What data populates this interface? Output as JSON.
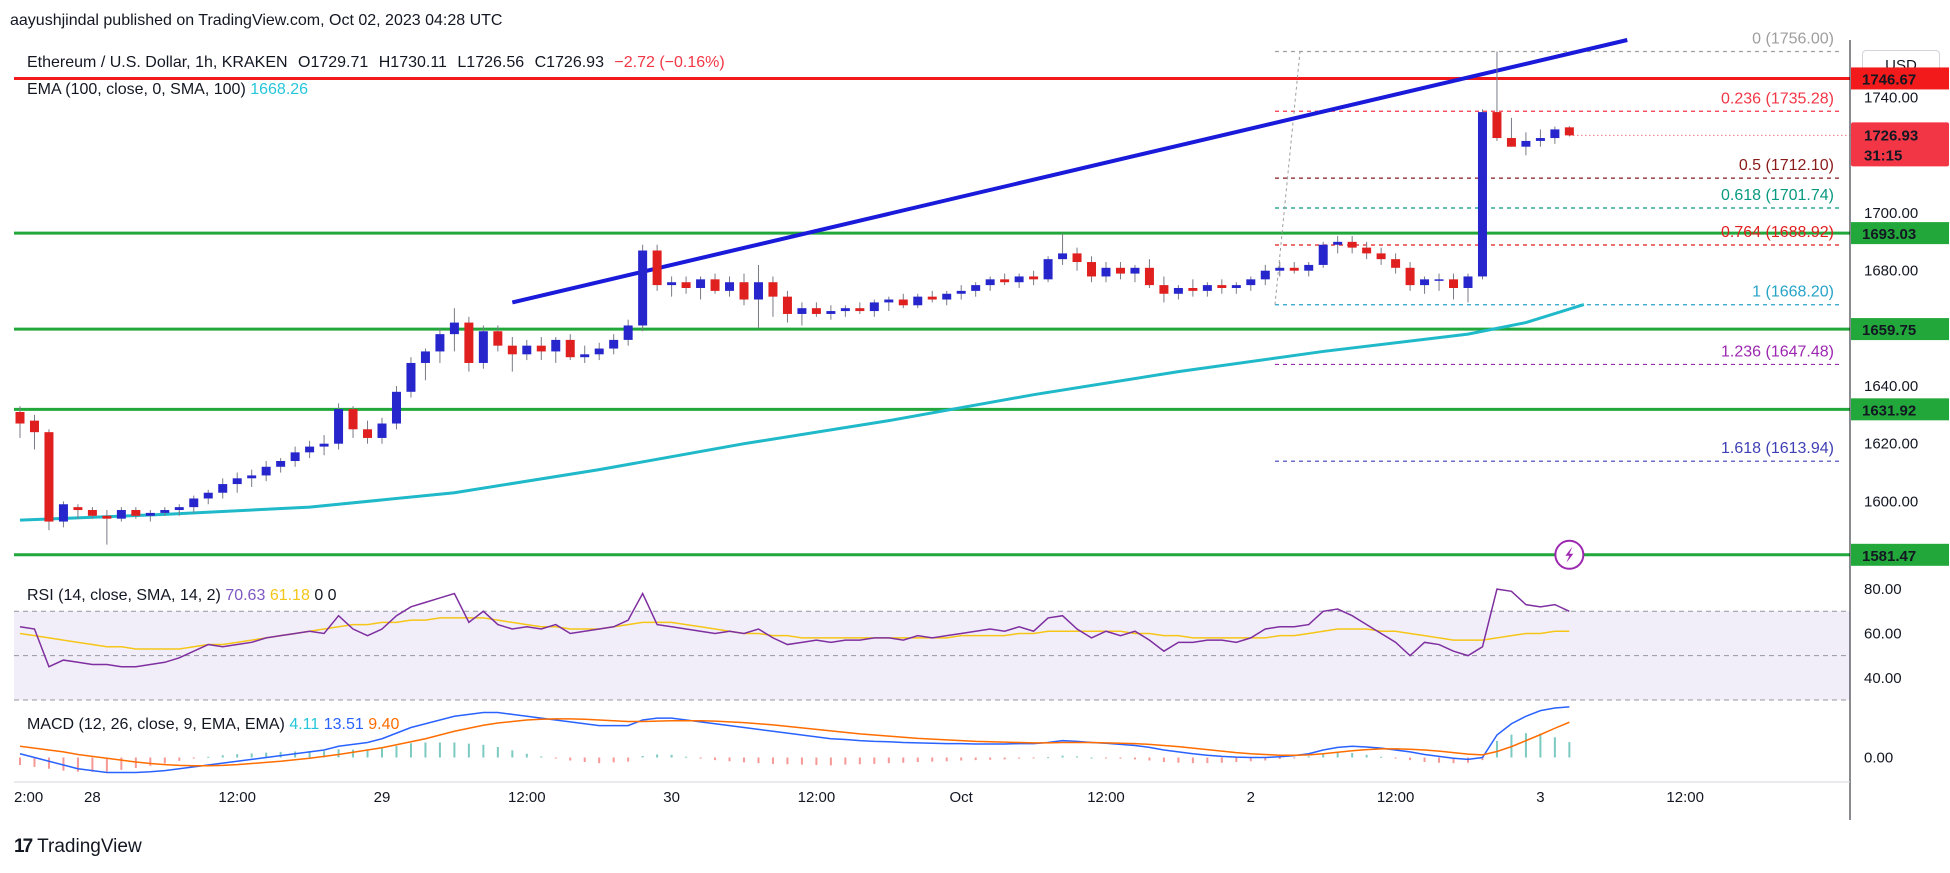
{
  "header": {
    "published": "aayushjindal published on TradingView.com, Oct 02, 2023 04:28 UTC"
  },
  "legend": {
    "symbol": "Ethereum / U.S. Dollar, 1h, KRAKEN",
    "open": "O1729.71",
    "high": "H1730.11",
    "low": "L1726.56",
    "close": "C1726.93",
    "change": "−2.72 (−0.16%)",
    "ema_label": "EMA (100, close, 0, SMA, 100)",
    "ema_value": "1668.26",
    "rsi_label": "RSI (14, close, SMA, 14, 2)",
    "rsi_value": "70.63",
    "rsi_ma_value": "61.18",
    "rsi_extra_1": "0",
    "rsi_extra_2": "0",
    "macd_label": "MACD (12, 26, close, 9, EMA, EMA)",
    "macd_hist_value": "4.11",
    "macd_value": "13.51",
    "macd_signal_value": "9.40"
  },
  "currency_badge": "USD",
  "footer": {
    "logo_mark": "17",
    "logo_text": "TradingView"
  },
  "colors": {
    "up": "#2626cc",
    "down": "#e01f1f",
    "trendline": "#1a1adb",
    "resistance": "#f21a1a",
    "support": "#22a83a",
    "ema": "#1fb9c9",
    "rsi": "#7e2fa0",
    "rsi_ma": "#f5c518",
    "macd": "#2962ff",
    "signal": "#ff6d00"
  },
  "chart_data": {
    "type": "candlestick",
    "title": "Ethereum / U.S. Dollar, 1h, KRAKEN",
    "ylim": [
      1571,
      1760
    ],
    "y_ticks": [
      "1740.00",
      "1700.00",
      "1680.00",
      "1640.00",
      "1620.00",
      "1600.00"
    ],
    "y_tick_values": [
      1740,
      1700,
      1680,
      1640,
      1620,
      1600
    ],
    "x_labels": [
      "2:00",
      "28",
      "12:00",
      "29",
      "12:00",
      "30",
      "12:00",
      "Oct",
      "12:00",
      "2",
      "12:00",
      "3",
      "12:00"
    ],
    "x_label_index": [
      -5,
      5,
      15,
      25,
      35,
      45,
      55,
      65,
      75,
      85,
      95,
      105,
      115
    ],
    "candles_ohlc": [
      [
        1631,
        1633,
        1622,
        1627
      ],
      [
        1628,
        1630,
        1618,
        1624
      ],
      [
        1624,
        1625,
        1590,
        1593
      ],
      [
        1593,
        1600,
        1591,
        1599
      ],
      [
        1598,
        1599,
        1594,
        1597
      ],
      [
        1597,
        1598,
        1594,
        1595
      ],
      [
        1595,
        1597,
        1585,
        1594
      ],
      [
        1594,
        1598,
        1593,
        1597
      ],
      [
        1597,
        1598,
        1594,
        1595
      ],
      [
        1595,
        1597,
        1593,
        1596
      ],
      [
        1596,
        1598,
        1595,
        1597
      ],
      [
        1597,
        1599,
        1595,
        1598
      ],
      [
        1598,
        1602,
        1596,
        1601
      ],
      [
        1601,
        1604,
        1599,
        1603
      ],
      [
        1603,
        1608,
        1601,
        1606
      ],
      [
        1606,
        1610,
        1603,
        1608
      ],
      [
        1608,
        1611,
        1605,
        1609
      ],
      [
        1609,
        1614,
        1607,
        1612
      ],
      [
        1612,
        1615,
        1610,
        1614
      ],
      [
        1614,
        1619,
        1612,
        1617
      ],
      [
        1617,
        1621,
        1615,
        1619
      ],
      [
        1619,
        1623,
        1616,
        1620
      ],
      [
        1620,
        1634,
        1618,
        1632
      ],
      [
        1632,
        1633,
        1622,
        1625
      ],
      [
        1625,
        1628,
        1620,
        1622
      ],
      [
        1622,
        1629,
        1620,
        1627
      ],
      [
        1627,
        1640,
        1625,
        1638
      ],
      [
        1638,
        1650,
        1636,
        1648
      ],
      [
        1648,
        1653,
        1642,
        1652
      ],
      [
        1652,
        1660,
        1648,
        1658
      ],
      [
        1658,
        1667,
        1652,
        1662
      ],
      [
        1662,
        1664,
        1645,
        1648
      ],
      [
        1648,
        1661,
        1646,
        1659
      ],
      [
        1659,
        1661,
        1652,
        1654
      ],
      [
        1654,
        1657,
        1645,
        1651
      ],
      [
        1651,
        1656,
        1649,
        1654
      ],
      [
        1654,
        1657,
        1649,
        1652
      ],
      [
        1652,
        1657,
        1648,
        1656
      ],
      [
        1656,
        1658,
        1649,
        1650
      ],
      [
        1650,
        1654,
        1648,
        1651
      ],
      [
        1651,
        1655,
        1649,
        1653
      ],
      [
        1653,
        1658,
        1651,
        1656
      ],
      [
        1656,
        1663,
        1654,
        1661
      ],
      [
        1661,
        1689,
        1659,
        1687
      ],
      [
        1687,
        1689,
        1673,
        1675
      ],
      [
        1675,
        1678,
        1671,
        1676
      ],
      [
        1676,
        1678,
        1672,
        1674
      ],
      [
        1674,
        1678,
        1670,
        1677
      ],
      [
        1677,
        1679,
        1672,
        1673
      ],
      [
        1673,
        1678,
        1671,
        1676
      ],
      [
        1676,
        1679,
        1668,
        1670
      ],
      [
        1670,
        1682,
        1660,
        1676
      ],
      [
        1676,
        1678,
        1664,
        1671
      ],
      [
        1671,
        1673,
        1662,
        1665
      ],
      [
        1665,
        1669,
        1661,
        1667
      ],
      [
        1667,
        1669,
        1664,
        1665
      ],
      [
        1665,
        1668,
        1663,
        1666
      ],
      [
        1666,
        1668,
        1664,
        1667
      ],
      [
        1667,
        1669,
        1665,
        1666
      ],
      [
        1666,
        1670,
        1664,
        1669
      ],
      [
        1669,
        1671,
        1666,
        1670
      ],
      [
        1670,
        1672,
        1667,
        1668
      ],
      [
        1668,
        1672,
        1667,
        1671
      ],
      [
        1671,
        1673,
        1669,
        1670
      ],
      [
        1670,
        1673,
        1668,
        1672
      ],
      [
        1672,
        1675,
        1670,
        1673
      ],
      [
        1673,
        1676,
        1671,
        1675
      ],
      [
        1675,
        1678,
        1673,
        1677
      ],
      [
        1677,
        1679,
        1675,
        1676
      ],
      [
        1676,
        1679,
        1674,
        1678
      ],
      [
        1678,
        1680,
        1675,
        1677
      ],
      [
        1677,
        1685,
        1676,
        1684
      ],
      [
        1684,
        1693,
        1682,
        1686
      ],
      [
        1686,
        1688,
        1680,
        1683
      ],
      [
        1683,
        1685,
        1676,
        1678
      ],
      [
        1678,
        1683,
        1676,
        1681
      ],
      [
        1681,
        1683,
        1677,
        1679
      ],
      [
        1679,
        1682,
        1676,
        1681
      ],
      [
        1681,
        1684,
        1674,
        1675
      ],
      [
        1675,
        1678,
        1669,
        1672
      ],
      [
        1672,
        1675,
        1670,
        1674
      ],
      [
        1674,
        1677,
        1671,
        1673
      ],
      [
        1673,
        1676,
        1671,
        1675
      ],
      [
        1675,
        1677,
        1672,
        1674
      ],
      [
        1674,
        1676,
        1672,
        1675
      ],
      [
        1675,
        1678,
        1673,
        1677
      ],
      [
        1677,
        1682,
        1675,
        1680
      ],
      [
        1680,
        1683,
        1678,
        1681
      ],
      [
        1681,
        1683,
        1679,
        1680
      ],
      [
        1680,
        1683,
        1678,
        1682
      ],
      [
        1682,
        1690,
        1681,
        1689
      ],
      [
        1689,
        1692,
        1686,
        1690
      ],
      [
        1690,
        1692,
        1686,
        1688
      ],
      [
        1688,
        1690,
        1684,
        1686
      ],
      [
        1686,
        1688,
        1682,
        1684
      ],
      [
        1684,
        1686,
        1679,
        1681
      ],
      [
        1681,
        1683,
        1673,
        1675
      ],
      [
        1675,
        1678,
        1672,
        1677
      ],
      [
        1677,
        1679,
        1673,
        1677
      ],
      [
        1677,
        1679,
        1670,
        1674
      ],
      [
        1674,
        1679,
        1669,
        1678
      ],
      [
        1678,
        1736,
        1677,
        1735
      ],
      [
        1735,
        1756,
        1725,
        1726
      ],
      [
        1726,
        1733,
        1723,
        1723
      ],
      [
        1723,
        1728,
        1720,
        1725
      ],
      [
        1725,
        1729,
        1723,
        1726
      ],
      [
        1726,
        1730,
        1724,
        1729
      ],
      [
        1729.71,
        1730.11,
        1726.56,
        1726.93
      ]
    ],
    "ema_100": [
      [
        0,
        1593.5
      ],
      [
        10,
        1595.5
      ],
      [
        20,
        1598
      ],
      [
        30,
        1603
      ],
      [
        40,
        1611
      ],
      [
        50,
        1620
      ],
      [
        60,
        1628
      ],
      [
        70,
        1637
      ],
      [
        80,
        1645
      ],
      [
        90,
        1652
      ],
      [
        100,
        1658
      ],
      [
        104,
        1662
      ],
      [
        108,
        1668.26
      ]
    ],
    "horizontal_levels": [
      {
        "value": 1746.67,
        "label": "1746.67",
        "color": "#f21a1a"
      },
      {
        "value": 1693.03,
        "label": "1693.03",
        "color": "#22a83a"
      },
      {
        "value": 1659.75,
        "label": "1659.75",
        "color": "#22a83a"
      },
      {
        "value": 1631.92,
        "label": "1631.92",
        "color": "#22a83a"
      },
      {
        "value": 1581.47,
        "label": "1581.47",
        "color": "#22a83a"
      }
    ],
    "trendline": {
      "start": [
        34,
        1669
      ],
      "end": [
        111,
        1760
      ]
    },
    "fibonacci": [
      {
        "ratio": "0",
        "value": 1756.0,
        "label": "0 (1756.00)",
        "color": "#9e9e9e"
      },
      {
        "ratio": "0.236",
        "value": 1735.28,
        "label": "0.236 (1735.28)",
        "color": "#f23645"
      },
      {
        "ratio": "0.5",
        "value": 1712.1,
        "label": "0.5 (1712.10)",
        "color": "#8b1a1a"
      },
      {
        "ratio": "0.618",
        "value": 1701.74,
        "label": "0.618 (1701.74)",
        "color": "#089981"
      },
      {
        "ratio": "0.764",
        "value": 1688.92,
        "label": "0.764 (1688.92)",
        "color": "#e01f1f"
      },
      {
        "ratio": "1",
        "value": 1668.2,
        "label": "1 (1668.20)",
        "color": "#26a3c9"
      },
      {
        "ratio": "1.236",
        "value": 1647.48,
        "label": "1.236 (1647.48)",
        "color": "#9c27b0"
      },
      {
        "ratio": "1.618",
        "value": 1613.94,
        "label": "1.618 (1613.94)",
        "color": "#3f3fb5"
      }
    ],
    "last_price": {
      "value": "1726.93",
      "countdown": "31:15"
    },
    "rsi": {
      "ylim": [
        30,
        85
      ],
      "ticks": [
        "80.00",
        "60.00",
        "40.00"
      ],
      "tick_values": [
        80,
        60,
        40
      ],
      "band": [
        30,
        70
      ],
      "midline": 50,
      "values": [
        63,
        62,
        45,
        48,
        47,
        46,
        46,
        45,
        45,
        46,
        47,
        49,
        52,
        55,
        54,
        55,
        56,
        58,
        59,
        60,
        61,
        60,
        68,
        62,
        59,
        62,
        68,
        72,
        74,
        76,
        78,
        65,
        70,
        64,
        62,
        63,
        62,
        64,
        60,
        61,
        62,
        63,
        66,
        78,
        64,
        63,
        62,
        61,
        60,
        61,
        60,
        62,
        58,
        55,
        56,
        57,
        56,
        57,
        57,
        58,
        58,
        57,
        59,
        58,
        59,
        60,
        61,
        62,
        61,
        63,
        61,
        67,
        68,
        62,
        58,
        61,
        59,
        61,
        57,
        52,
        56,
        56,
        57,
        57,
        56,
        58,
        62,
        63,
        63,
        64,
        70,
        71,
        68,
        64,
        60,
        56,
        50,
        56,
        55,
        52,
        50,
        54,
        80,
        79,
        73,
        72,
        73,
        70
      ],
      "ma_values": [
        60,
        59,
        58,
        57,
        56,
        55,
        54,
        54,
        53,
        53,
        53,
        53,
        54,
        55,
        55,
        56,
        57,
        58,
        59,
        60,
        61,
        62,
        63,
        64,
        64,
        65,
        65,
        66,
        66,
        67,
        67,
        67,
        67,
        66,
        65,
        64,
        63,
        63,
        62,
        62,
        62,
        63,
        64,
        65,
        65,
        65,
        64,
        63,
        62,
        61,
        60,
        60,
        59,
        59,
        58,
        58,
        58,
        58,
        58,
        58,
        58,
        58,
        58,
        58,
        58,
        59,
        59,
        59,
        59,
        60,
        60,
        61,
        61,
        61,
        61,
        61,
        61,
        60,
        60,
        59,
        59,
        58,
        58,
        58,
        58,
        58,
        58,
        59,
        59,
        60,
        61,
        62,
        62,
        62,
        61,
        61,
        60,
        59,
        58,
        57,
        57,
        57,
        58,
        59,
        60,
        60,
        61,
        61
      ]
    },
    "macd": {
      "ylim": [
        -6,
        14
      ],
      "ticks": [
        "0.00"
      ],
      "tick_values": [
        0
      ],
      "macd_values": [
        1,
        0,
        -1,
        -2,
        -3,
        -3.5,
        -4,
        -4,
        -4,
        -3.8,
        -3.5,
        -3,
        -2.5,
        -2,
        -1.5,
        -1,
        -0.5,
        0,
        0.5,
        1,
        1.5,
        2,
        3,
        3.5,
        4,
        5,
        6.5,
        8,
        9,
        10,
        11,
        11.5,
        12,
        12,
        11.5,
        11,
        10.5,
        10,
        9.5,
        9,
        8.5,
        8.5,
        8.5,
        10,
        10.5,
        10.5,
        10,
        9.5,
        9,
        8.5,
        8,
        7.5,
        7,
        6.5,
        6,
        5.5,
        5,
        4.8,
        4.5,
        4.3,
        4.2,
        4,
        3.9,
        3.8,
        3.7,
        3.7,
        3.6,
        3.6,
        3.6,
        3.7,
        3.7,
        4,
        4.5,
        4.3,
        4,
        3.8,
        3.5,
        3.2,
        2.7,
        2,
        1.5,
        1,
        0.6,
        0.3,
        0.1,
        0,
        0,
        0.2,
        0.5,
        1,
        2,
        2.7,
        3,
        2.8,
        2.5,
        2,
        1.5,
        0.8,
        0.3,
        -0.2,
        -0.5,
        0,
        6,
        9,
        11,
        12.5,
        13.2,
        13.51
      ],
      "signal_values": [
        3,
        2.5,
        2,
        1.5,
        0.8,
        0.3,
        -0.2,
        -0.7,
        -1.2,
        -1.6,
        -1.9,
        -2.1,
        -2.2,
        -2.2,
        -2.1,
        -1.9,
        -1.6,
        -1.3,
        -1,
        -0.6,
        -0.2,
        0.3,
        0.8,
        1.4,
        2,
        2.6,
        3.4,
        4.2,
        5,
        6,
        7,
        7.8,
        8.6,
        9.2,
        9.6,
        10,
        10.2,
        10.3,
        10.3,
        10.2,
        10,
        9.8,
        9.6,
        9.6,
        9.7,
        9.8,
        9.8,
        9.8,
        9.7,
        9.5,
        9.3,
        9,
        8.7,
        8.3,
        7.9,
        7.5,
        7.1,
        6.7,
        6.3,
        6,
        5.7,
        5.4,
        5.1,
        4.9,
        4.7,
        4.5,
        4.3,
        4.2,
        4.1,
        4,
        3.9,
        3.9,
        4,
        4,
        4,
        3.9,
        3.8,
        3.7,
        3.5,
        3.2,
        2.9,
        2.5,
        2.1,
        1.7,
        1.3,
        1,
        0.8,
        0.6,
        0.6,
        0.7,
        1,
        1.4,
        1.8,
        2.1,
        2.3,
        2.3,
        2.2,
        2,
        1.7,
        1.3,
        0.9,
        0.7,
        1.6,
        2.9,
        4.5,
        6.1,
        7.8,
        9.4
      ]
    }
  }
}
